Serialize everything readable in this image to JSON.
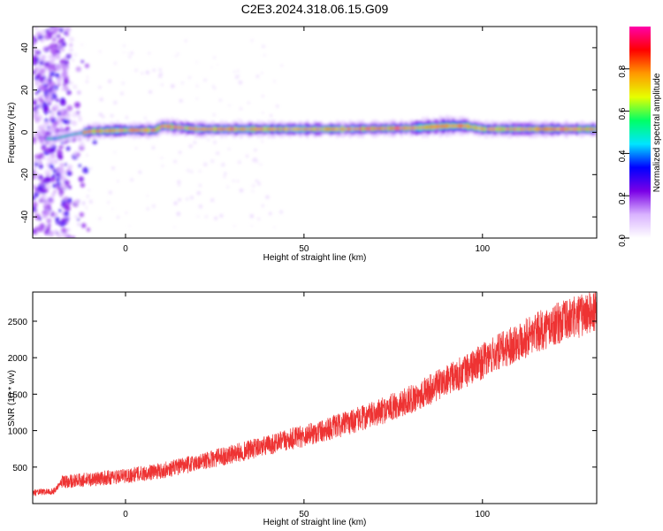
{
  "title": "C2E3.2024.318.06.15.G09",
  "chart_data": [
    {
      "type": "heatmap",
      "xlabel": "Height of straight line (km)",
      "ylabel": "Frequency (Hz)",
      "xlim": [
        -26,
        132
      ],
      "ylim": [
        -50,
        50
      ],
      "x_ticks": [
        0,
        50,
        100
      ],
      "y_ticks": [
        -40,
        -20,
        0,
        20,
        40
      ],
      "colorbar": {
        "label": "Normalized spectral amplitude",
        "range": [
          0,
          1
        ],
        "ticks": [
          0.0,
          0.2,
          0.4,
          0.6,
          0.8
        ],
        "colormap": [
          "#ffffff",
          "#d9b3ff",
          "#7a00e6",
          "#0000ff",
          "#00e5ff",
          "#00ff66",
          "#e6ff00",
          "#ff9900",
          "#ff0000",
          "#ff00aa"
        ]
      },
      "ridge": {
        "x": [
          -20,
          -15,
          -10,
          0,
          8,
          10,
          20,
          40,
          60,
          80,
          90,
          95,
          100,
          110,
          132
        ],
        "frequency": [
          -3,
          -1,
          0.5,
          1,
          1,
          3,
          1.5,
          1.5,
          1.5,
          2,
          3,
          3,
          1.5,
          1.5,
          1.5
        ]
      }
    },
    {
      "type": "line",
      "xlabel": "Height of straight line (km)",
      "ylabel": "SNR (10 * v/v)",
      "xlim": [
        -26,
        132
      ],
      "ylim": [
        0,
        2900
      ],
      "x_ticks": [
        0,
        50,
        100
      ],
      "y_ticks": [
        500,
        1000,
        1500,
        2000,
        2500
      ],
      "color": "#ee3333",
      "series": [
        {
          "x": [
            -26,
            -20,
            -18,
            -10,
            0,
            10,
            20,
            30,
            40,
            50,
            60,
            70,
            80,
            90,
            100,
            110,
            120,
            132
          ],
          "values": [
            150,
            170,
            300,
            330,
            380,
            450,
            560,
            680,
            800,
            930,
            1070,
            1230,
            1430,
            1680,
            1950,
            2230,
            2450,
            2650
          ]
        }
      ]
    }
  ]
}
